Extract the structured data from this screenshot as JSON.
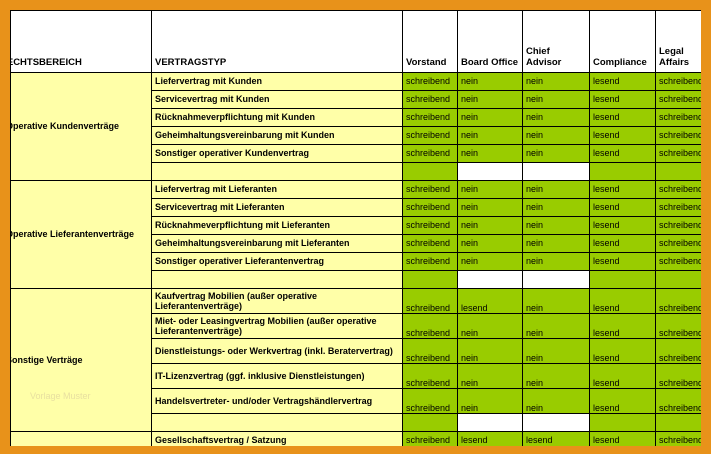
{
  "headers": [
    "RECHTSBEREICH",
    "VERTRAGSTYP",
    "Vorstand",
    "Board Office",
    "Chief Advisor",
    "Compliance",
    "Legal Affairs"
  ],
  "groups": [
    {
      "name": "Operative Kundenverträge",
      "rows": [
        {
          "type": "Liefervertrag mit Kunden",
          "values": [
            "schreibend",
            "nein",
            "nein",
            "lesend",
            "schreibend"
          ]
        },
        {
          "type": "Servicevertrag mit Kunden",
          "values": [
            "schreibend",
            "nein",
            "nein",
            "lesend",
            "schreibend"
          ]
        },
        {
          "type": "Rücknahmeverpflichtung mit Kunden",
          "values": [
            "schreibend",
            "nein",
            "nein",
            "lesend",
            "schreibend"
          ]
        },
        {
          "type": "Geheimhaltungsvereinbarung mit Kunden",
          "values": [
            "schreibend",
            "nein",
            "nein",
            "lesend",
            "schreibend"
          ]
        },
        {
          "type": "Sonstiger operativer Kundenvertrag",
          "values": [
            "schreibend",
            "nein",
            "nein",
            "lesend",
            "schreibend"
          ]
        },
        {
          "type": "",
          "values": [
            "",
            "",
            "",
            "",
            ""
          ]
        }
      ]
    },
    {
      "name": "Operative Lieferantenverträge",
      "rows": [
        {
          "type": "Liefervertrag mit Lieferanten",
          "values": [
            "schreibend",
            "nein",
            "nein",
            "lesend",
            "schreibend"
          ]
        },
        {
          "type": "Servicevertrag mit Lieferanten",
          "values": [
            "schreibend",
            "nein",
            "nein",
            "lesend",
            "schreibend"
          ]
        },
        {
          "type": "Rücknahmeverpflichtung mit Lieferanten",
          "values": [
            "schreibend",
            "nein",
            "nein",
            "lesend",
            "schreibend"
          ]
        },
        {
          "type": "Geheimhaltungsvereinbarung mit Lieferanten",
          "values": [
            "schreibend",
            "nein",
            "nein",
            "lesend",
            "schreibend"
          ]
        },
        {
          "type": "Sonstiger operativer Lieferantenvertrag",
          "values": [
            "schreibend",
            "nein",
            "nein",
            "lesend",
            "schreibend"
          ]
        },
        {
          "type": "",
          "values": [
            "",
            "",
            "",
            "",
            ""
          ]
        }
      ]
    },
    {
      "name": "Sonstige Verträge",
      "rows": [
        {
          "type": "Kaufvertrag Mobilien (außer operative Lieferantenverträge)",
          "values": [
            "schreibend",
            "lesend",
            "nein",
            "lesend",
            "schreibend"
          ],
          "wrap": true
        },
        {
          "type": "Miet- oder Leasingvertrag Mobilien (außer operative Lieferantenverträge)",
          "values": [
            "schreibend",
            "nein",
            "nein",
            "lesend",
            "schreibend"
          ],
          "wrap": true
        },
        {
          "type": "Dienstleistungs- oder Werkvertrag (inkl. Beratervertrag)",
          "values": [
            "schreibend",
            "nein",
            "nein",
            "lesend",
            "schreibend"
          ],
          "wrap": true
        },
        {
          "type": "IT-Lizenzvertrag (ggf. inklusive Dienstleistungen)",
          "values": [
            "schreibend",
            "nein",
            "nein",
            "lesend",
            "schreibend"
          ],
          "wrap": true
        },
        {
          "type": "Handelsvertreter- und/oder Vertragshändlervertrag",
          "values": [
            "schreibend",
            "nein",
            "nein",
            "lesend",
            "schreibend"
          ],
          "wrap": true
        },
        {
          "type": "",
          "values": [
            "",
            "",
            "",
            "",
            ""
          ]
        }
      ]
    }
  ],
  "partial_row": {
    "type": "Gesellschaftsvertrag / Satzung",
    "values": [
      "schreibend",
      "lesend",
      "lesend",
      "lesend",
      "schreibend"
    ]
  },
  "watermark": "Vorlage Muster"
}
